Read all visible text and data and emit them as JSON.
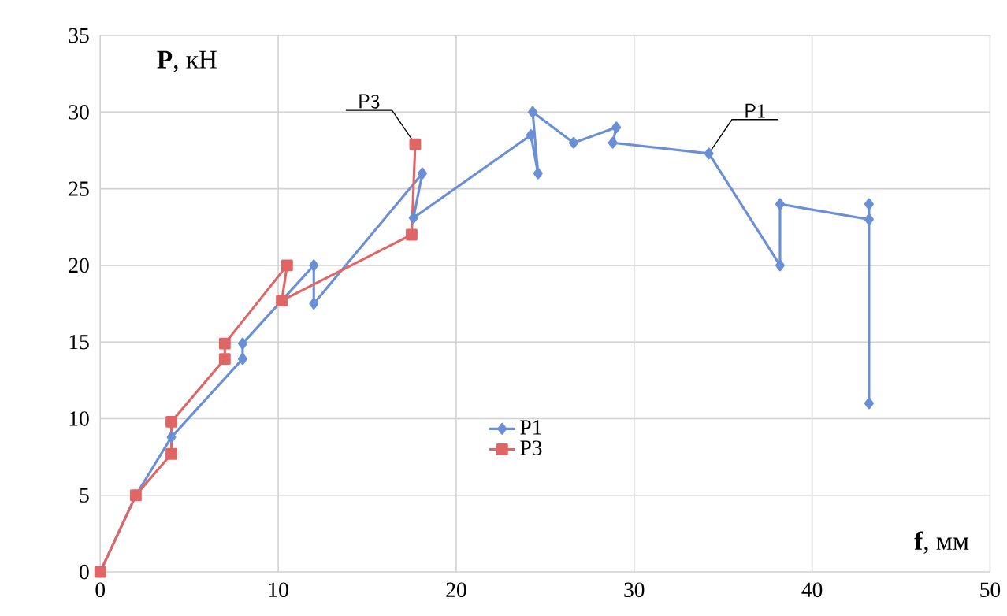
{
  "chart_data": {
    "type": "line",
    "xlabel": "**f**, мм",
    "ylabel": "**P**, кН",
    "xlim": [
      0,
      50
    ],
    "xticks": [
      0,
      10,
      20,
      30,
      40,
      50
    ],
    "ylim": [
      0,
      35
    ],
    "yticks": [
      0,
      5,
      10,
      15,
      20,
      25,
      30,
      35
    ],
    "grid": true,
    "legend": "bottom",
    "series": [
      {
        "name": "P1",
        "color": "#6a8fd6",
        "marker": "diamond",
        "x": [
          0,
          2,
          4,
          8,
          8,
          12,
          12,
          18.1,
          17.6,
          24.2,
          24.6,
          24.3,
          26.6,
          29,
          28.8,
          34.2,
          38.2,
          38.2,
          43.2,
          43.2,
          43.2
        ],
        "values": [
          0,
          5,
          8.8,
          13.9,
          14.9,
          20,
          17.5,
          26,
          23.1,
          28.5,
          26,
          30,
          28,
          29,
          28,
          27.3,
          20,
          24,
          23,
          24,
          11
        ]
      },
      {
        "name": "P3",
        "color": "#e06666",
        "marker": "square",
        "x": [
          0,
          2,
          4,
          4,
          7,
          7,
          10.5,
          10.2,
          17.5,
          17.7
        ],
        "values": [
          0,
          5,
          7.7,
          9.8,
          13.9,
          14.9,
          20,
          17.7,
          22,
          27.9
        ]
      }
    ],
    "annotations": [
      {
        "text": "P3",
        "x": 17.7,
        "y": 27.9
      },
      {
        "text": "P1",
        "x": 34.2,
        "y": 27.3
      }
    ]
  }
}
